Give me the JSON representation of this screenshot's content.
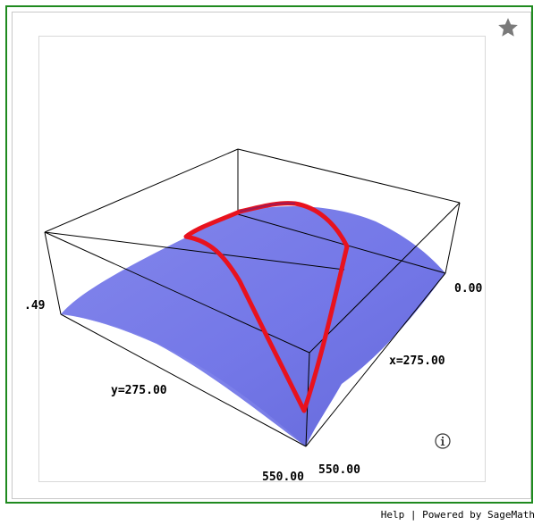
{
  "viewer": {
    "labels": {
      "tick_left": ".49",
      "tick_right_top": "0.00",
      "x_mid": "x=275.00",
      "y_mid": "y=275.00",
      "corner_bottom_left": "550.00",
      "corner_bottom_right": "550.00"
    },
    "star_icon": "star-icon",
    "info_icon": "info-icon"
  },
  "footer": {
    "help": "Help",
    "separator": "|",
    "powered": "Powered by SageMath"
  },
  "colors": {
    "frame_border": "#1f8a1f",
    "surface": "#6f73e6",
    "curve": "#e8121e",
    "star": "#7a7a7a"
  }
}
